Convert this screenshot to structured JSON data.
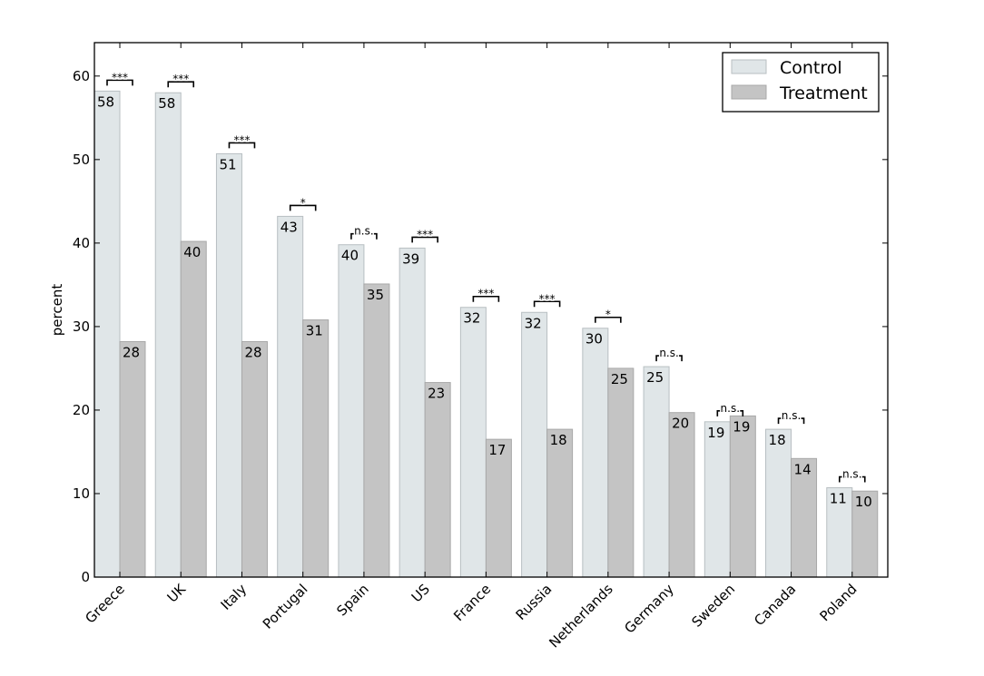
{
  "chart_data": {
    "type": "bar",
    "title": "",
    "xlabel": "",
    "ylabel": "percent",
    "ylim": [
      0,
      64
    ],
    "yticks": [
      0,
      10,
      20,
      30,
      40,
      50,
      60
    ],
    "grid": false,
    "legend_position": "top-right",
    "categories": [
      "Greece",
      "UK",
      "Italy",
      "Portugal",
      "Spain",
      "US",
      "France",
      "Russia",
      "Netherlands",
      "Germany",
      "Sweden",
      "Canada",
      "Poland"
    ],
    "series": [
      {
        "name": "Control",
        "color": "#e0e6e8",
        "values": [
          58.2,
          58.0,
          50.7,
          43.2,
          39.8,
          39.4,
          32.3,
          31.7,
          29.8,
          25.2,
          18.6,
          17.7,
          10.7
        ],
        "labels": [
          "58",
          "58",
          "51",
          "43",
          "40",
          "39",
          "32",
          "32",
          "30",
          "25",
          "19",
          "18",
          "11"
        ]
      },
      {
        "name": "Treatment",
        "color": "#c4c4c4",
        "values": [
          28.2,
          40.2,
          28.2,
          30.8,
          35.1,
          23.3,
          16.5,
          17.7,
          25.0,
          19.7,
          19.3,
          14.2,
          10.3
        ],
        "labels": [
          "28",
          "40",
          "28",
          "31",
          "35",
          "23",
          "17",
          "18",
          "25",
          "20",
          "19",
          "14",
          "10"
        ]
      }
    ],
    "significance": [
      "***",
      "***",
      "***",
      "*",
      "n.s.",
      "***",
      "***",
      "***",
      "*",
      "n.s.",
      "n.s.",
      "n.s.",
      "n.s."
    ]
  }
}
